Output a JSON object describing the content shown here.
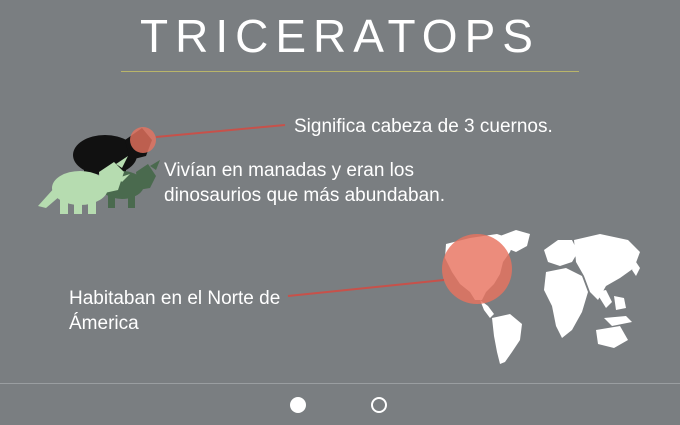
{
  "title": "TRICERATOPS",
  "facts": {
    "name_meaning": "Significa cabeza de 3 cuernos.",
    "herds": "Vivían en manadas y eran los dinosaurios que más abundaban.",
    "habitat": "Habitaban en el Norte de Ámerica"
  },
  "pagination": {
    "total": 2,
    "active": 1
  },
  "icons": {
    "dinosaur_herd": "triceratops-silhouettes",
    "world_map": "world-map",
    "highlight": "highlight-circle"
  },
  "colors": {
    "background": "#7a7e81",
    "title_rule": "#b9b56a",
    "highlight": "#e8735f",
    "connector": "#c7514a",
    "dino_back": "#111111",
    "dino_mid": "#4a6a4e",
    "dino_front": "#b6dcb0",
    "map": "#ffffff"
  }
}
